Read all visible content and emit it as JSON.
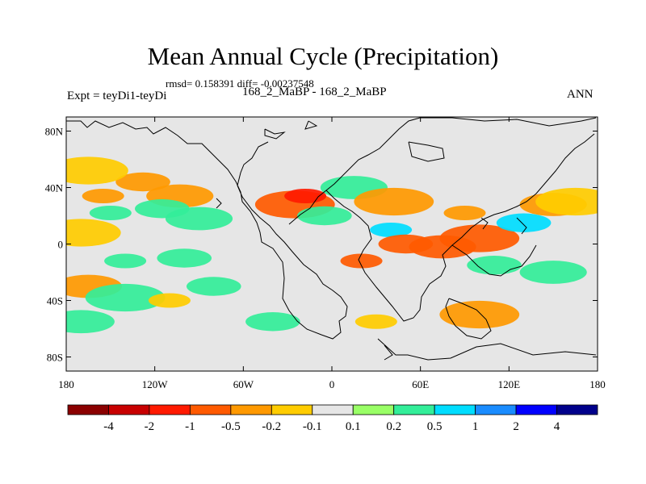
{
  "header": {
    "title": "Mean Annual Cycle (Precipitation)",
    "stats": "rmsd= 0.158391 diff= -0.00237548",
    "experiment": "Expt = teyDi1-teyDi",
    "cases": "168_2_MaBP - 168_2_MaBP",
    "season": "ANN"
  },
  "chart_data": {
    "type": "heatmap",
    "title": "Mean Annual Cycle (Precipitation)",
    "xlabel": "",
    "ylabel": "",
    "xlim": [
      -180,
      180
    ],
    "ylim": [
      -90,
      90
    ],
    "x_ticks": [
      {
        "value": -180,
        "label": "180"
      },
      {
        "value": -120,
        "label": "120W"
      },
      {
        "value": -60,
        "label": "60W"
      },
      {
        "value": 0,
        "label": "0"
      },
      {
        "value": 60,
        "label": "60E"
      },
      {
        "value": 120,
        "label": "120E"
      },
      {
        "value": 180,
        "label": "180"
      }
    ],
    "y_ticks": [
      {
        "value": 80,
        "label": "80N"
      },
      {
        "value": 40,
        "label": "40N"
      },
      {
        "value": 0,
        "label": "0"
      },
      {
        "value": -40,
        "label": "40S"
      },
      {
        "value": -80,
        "label": "80S"
      }
    ],
    "colorbar": {
      "levels": [
        "-4",
        "-2",
        "-1",
        "-0.5",
        "-0.2",
        "-0.1",
        "0.1",
        "0.2",
        "0.5",
        "1",
        "2",
        "4"
      ],
      "colors": [
        "#8b0000",
        "#c80000",
        "#ff1a00",
        "#ff5a00",
        "#ff9900",
        "#ffcc00",
        "#e6e6e6",
        "#99ff66",
        "#33ee99",
        "#00ddff",
        "#1a8cff",
        "#0000ff",
        "#00008b"
      ]
    },
    "anomalies": [
      {
        "lon": -155,
        "lat": 34,
        "value": -0.3
      },
      {
        "lon": -128,
        "lat": 44,
        "value": -0.3
      },
      {
        "lon": -103,
        "lat": 34,
        "value": -0.3
      },
      {
        "lon": -165,
        "lat": 52,
        "value": -0.15
      },
      {
        "lon": -150,
        "lat": 22,
        "value": 0.25
      },
      {
        "lon": -115,
        "lat": 25,
        "value": 0.2
      },
      {
        "lon": -90,
        "lat": 18,
        "value": 0.25
      },
      {
        "lon": -170,
        "lat": 8,
        "value": -0.15
      },
      {
        "lon": -140,
        "lat": -12,
        "value": 0.25
      },
      {
        "lon": -100,
        "lat": -10,
        "value": 0.2
      },
      {
        "lon": -165,
        "lat": -30,
        "value": -0.3
      },
      {
        "lon": -140,
        "lat": -38,
        "value": 0.25
      },
      {
        "lon": -110,
        "lat": -40,
        "value": -0.2
      },
      {
        "lon": -80,
        "lat": -30,
        "value": 0.2
      },
      {
        "lon": -170,
        "lat": -55,
        "value": 0.25
      },
      {
        "lon": -25,
        "lat": 28,
        "value": -0.6
      },
      {
        "lon": -18,
        "lat": 34,
        "value": -1.2
      },
      {
        "lon": -5,
        "lat": 20,
        "value": 0.2
      },
      {
        "lon": 15,
        "lat": 40,
        "value": 0.2
      },
      {
        "lon": 42,
        "lat": 30,
        "value": -0.3
      },
      {
        "lon": 40,
        "lat": 10,
        "value": 0.6
      },
      {
        "lon": 50,
        "lat": 0,
        "value": -0.7
      },
      {
        "lon": 75,
        "lat": -2,
        "value": -0.7
      },
      {
        "lon": 100,
        "lat": 4,
        "value": -0.8
      },
      {
        "lon": 90,
        "lat": 22,
        "value": -0.3
      },
      {
        "lon": 130,
        "lat": 15,
        "value": 0.6
      },
      {
        "lon": 150,
        "lat": 28,
        "value": -0.3
      },
      {
        "lon": 165,
        "lat": 30,
        "value": -0.2
      },
      {
        "lon": 20,
        "lat": -12,
        "value": -1.0
      },
      {
        "lon": 110,
        "lat": -15,
        "value": 0.25
      },
      {
        "lon": 150,
        "lat": -20,
        "value": 0.2
      },
      {
        "lon": 100,
        "lat": -50,
        "value": -0.3
      },
      {
        "lon": 30,
        "lat": -55,
        "value": -0.2
      },
      {
        "lon": -40,
        "lat": -55,
        "value": 0.25
      }
    ]
  }
}
